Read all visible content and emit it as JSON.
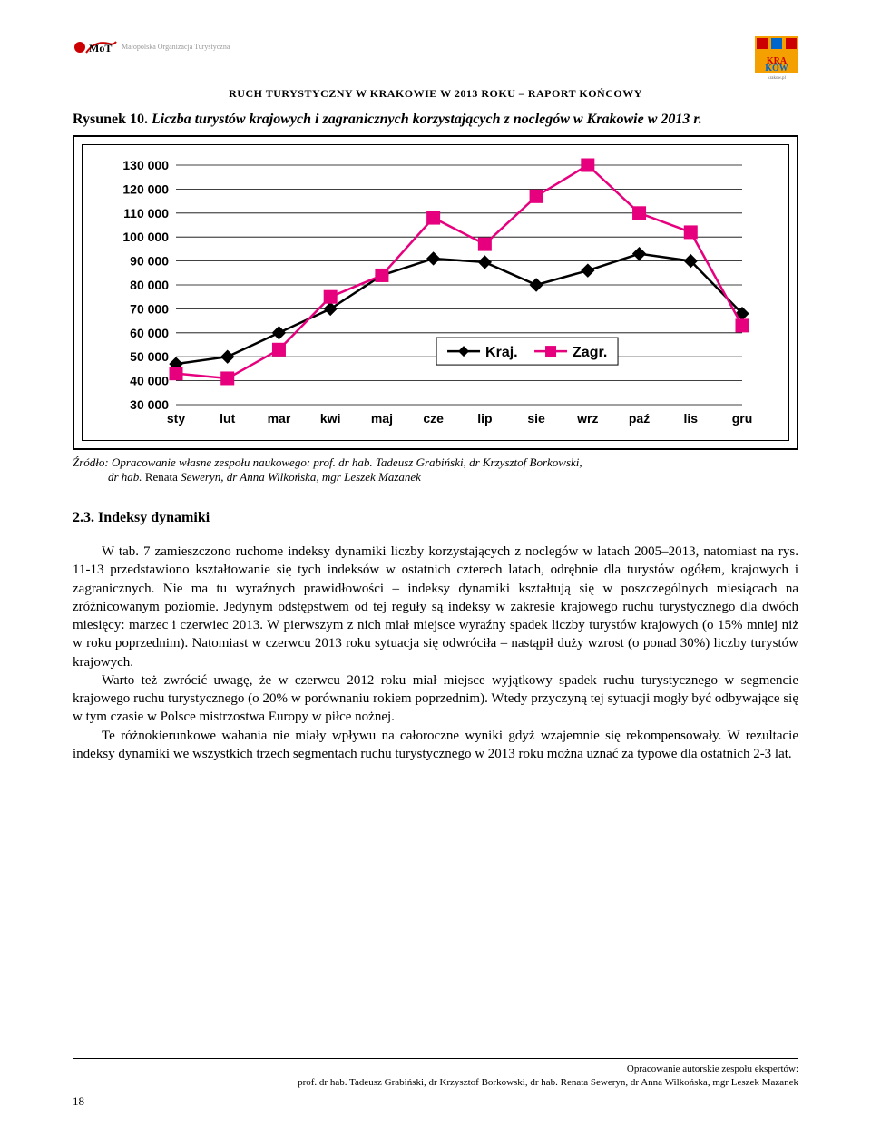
{
  "header": {
    "logo_left_text": "Małopolska Organizacja Turystyczna",
    "report_title": "RUCH TURYSTYCZNY W KRAKOWIE W 2013 ROKU – RAPORT KOŃCOWY",
    "logo_right_text": "krakow.pl"
  },
  "figure": {
    "caption_prefix": "Rysunek 10.",
    "caption_italic": "Liczba turystów krajowych i zagranicznych korzystających z noclegów w Krakowie w 2013 r.",
    "chart": {
      "ylim": [
        30000,
        130000
      ],
      "ytick_step": 10000,
      "ylabels": [
        "130 000",
        "120 000",
        "110 000",
        "100 000",
        "90 000",
        "80 000",
        "70 000",
        "60 000",
        "50 000",
        "40 000",
        "30 000"
      ],
      "yvalues": [
        130000,
        120000,
        110000,
        100000,
        90000,
        80000,
        70000,
        60000,
        50000,
        40000,
        30000
      ],
      "xlabels": [
        "sty",
        "lut",
        "mar",
        "kwi",
        "maj",
        "cze",
        "lip",
        "sie",
        "wrz",
        "paź",
        "lis",
        "gru"
      ],
      "legend": {
        "kraj": "Kraj.",
        "zagr": "Zagr."
      },
      "series_kraj": {
        "color": "#000000",
        "values": [
          47000,
          50000,
          60000,
          70000,
          84000,
          91000,
          89500,
          80000,
          86000,
          93000,
          90000,
          68000
        ]
      },
      "series_zagr": {
        "color": "#e6007e",
        "values": [
          43000,
          41000,
          53000,
          75000,
          84000,
          108000,
          97000,
          117000,
          130000,
          110000,
          102000,
          63000
        ]
      },
      "grid_color": "#000000",
      "background_color": "#ffffff",
      "line_width": 2.5,
      "marker_size": 7
    },
    "source_prefix": "Źródło: Opracowanie własne zespołu naukowego: prof. dr hab. Tadeusz Grabiński, dr Krzysztof Borkowski,",
    "source_line2_prefix": "dr hab. ",
    "source_line2_normal": "Renata ",
    "source_line2_suffix": "Seweryn, dr Anna Wilkońska, mgr Leszek Mazanek"
  },
  "section": {
    "heading": "2.3. Indeksy dynamiki",
    "para1": "W tab. 7 zamieszczono ruchome indeksy dynamiki liczby korzystających z noclegów w latach 2005–2013, natomiast na rys. 11-13 przedstawiono kształtowanie się tych indeksów w ostatnich czterech latach, odrębnie dla turystów ogółem, krajowych i zagranicznych. Nie ma tu wyraźnych prawidłowości – indeksy dynamiki kształtują się w poszczególnych miesiącach na zróżnicowanym poziomie. Jedynym odstępstwem od tej reguły są indeksy w zakresie krajowego ruchu turystycznego dla dwóch miesięcy: marzec i czerwiec 2013. W pierwszym z nich miał miejsce wyraźny spadek liczby turystów krajowych (o 15% mniej niż w roku poprzednim). Natomiast w czerwcu 2013 roku sytuacja się odwróciła – nastąpił duży wzrost (o ponad 30%) liczby turystów krajowych.",
    "para2": "Warto też zwrócić uwagę, że w czerwcu 2012 roku miał miejsce wyjątkowy spadek ruchu turystycznego w segmencie krajowego ruchu turystycznego (o 20% w porównaniu rokiem poprzednim). Wtedy przyczyną tej sytuacji mogły być odbywające się w tym czasie w Polsce mistrzostwa Europy w piłce nożnej.",
    "para3": "Te różnokierunkowe wahania nie miały wpływu na całoroczne wyniki gdyż wzajemnie się rekompensowały. W rezultacie indeksy dynamiki we wszystkich trzech segmentach ruchu turystycznego w 2013 roku można uznać za typowe dla ostatnich 2-3 lat."
  },
  "footer": {
    "line1": "Opracowanie autorskie zespołu ekspertów:",
    "line2": "prof. dr hab. Tadeusz Grabiński, dr Krzysztof Borkowski, dr hab. Renata Seweryn, dr Anna Wilkońska, mgr Leszek Mazanek",
    "page_number": "18"
  }
}
